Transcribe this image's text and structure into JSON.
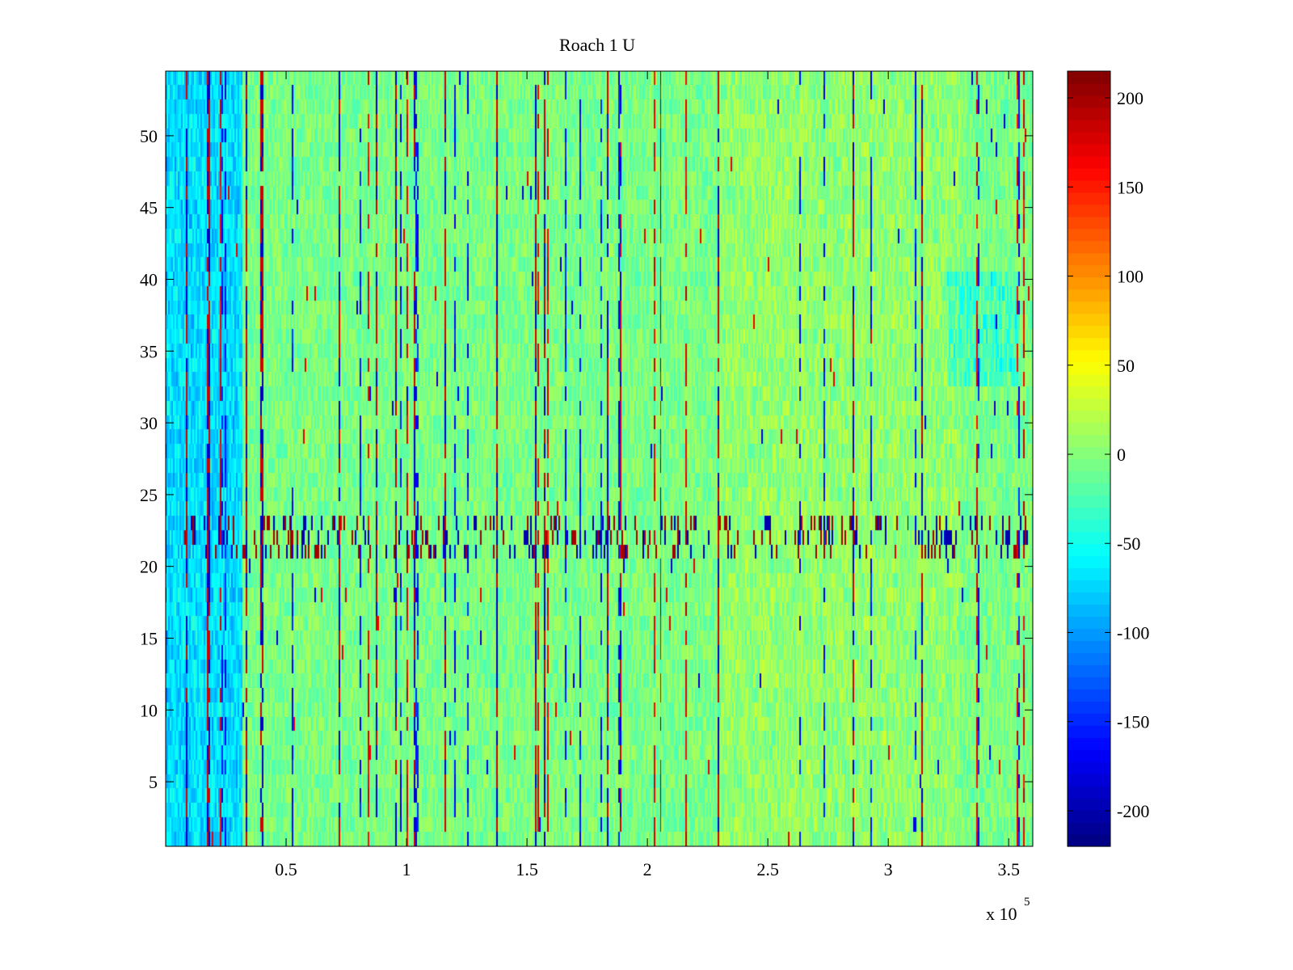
{
  "chart_data": {
    "type": "heatmap",
    "title": "Roach 1 U",
    "xlabel": "",
    "ylabel": "",
    "x_exponent_label": "x 10",
    "x_exponent_power": "5",
    "xlim": [
      0.0,
      3.6
    ],
    "ylim": [
      0.5,
      54.5
    ],
    "x_ticks": [
      0.5,
      1,
      1.5,
      2,
      2.5,
      3,
      3.5
    ],
    "x_tick_labels": [
      "0.5",
      "1",
      "1.5",
      "2",
      "2.5",
      "3",
      "3.5"
    ],
    "y_ticks": [
      5,
      10,
      15,
      20,
      25,
      30,
      35,
      40,
      45,
      50
    ],
    "y_tick_labels": [
      "5",
      "10",
      "15",
      "20",
      "25",
      "30",
      "35",
      "40",
      "45",
      "50"
    ],
    "rows": 54,
    "colormap": "jet",
    "clim": [
      -220,
      215
    ],
    "colorbar_ticks": [
      200,
      150,
      100,
      50,
      0,
      -50,
      -100,
      -150,
      -200
    ],
    "colorbar_tick_labels": [
      "200",
      "150",
      "100",
      "50",
      "0",
      "-50",
      "-100",
      "-150",
      "-200"
    ],
    "baseline_value": -5,
    "left_band": {
      "x_end": 0.32,
      "value": -85,
      "rows": [
        1,
        54
      ]
    },
    "warm_region": {
      "x_range": [
        2.3,
        3.3
      ],
      "value": 20
    },
    "right_cool_patch": {
      "x_range": [
        3.25,
        3.55
      ],
      "rows": [
        33,
        40
      ],
      "value": -75
    },
    "noisy_rows": [
      21,
      22,
      23
    ],
    "vertical_stripe_columns": [
      0.09,
      0.17,
      0.18,
      0.33,
      0.39,
      0.4,
      0.72,
      0.87,
      0.95,
      1.03,
      1.16,
      1.37,
      1.53,
      1.57,
      1.83,
      1.89,
      2.05,
      2.29,
      2.85,
      3.14
    ]
  },
  "colors": {
    "axes": "#000000",
    "background": "#ffffff"
  }
}
